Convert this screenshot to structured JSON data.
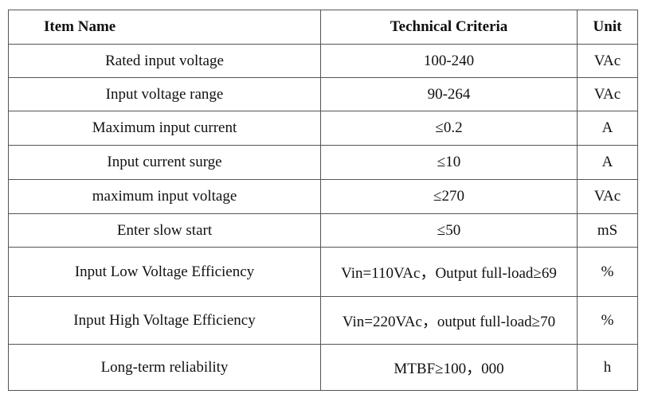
{
  "table": {
    "header": [
      "Item Name",
      "Technical Criteria",
      "Unit"
    ],
    "rows": [
      [
        "Rated input voltage",
        "100-240",
        "VAc"
      ],
      [
        "Input voltage range",
        "90-264",
        "VAc"
      ],
      [
        "Maximum input current",
        "≤0.2",
        "A"
      ],
      [
        "Input current surge",
        "≤10",
        "A"
      ],
      [
        "maximum input voltage",
        "≤270",
        "VAc"
      ],
      [
        "Enter slow start",
        "≤50",
        "mS"
      ],
      [
        "Input Low Voltage Efficiency",
        "Vin=110VAc，Output full-load≥69",
        "%"
      ],
      [
        "Input High Voltage Efficiency",
        "Vin=220VAc，output full-load≥70",
        "%"
      ],
      [
        "Long-term reliability",
        "MTBF≥100，000",
        "h"
      ]
    ]
  }
}
